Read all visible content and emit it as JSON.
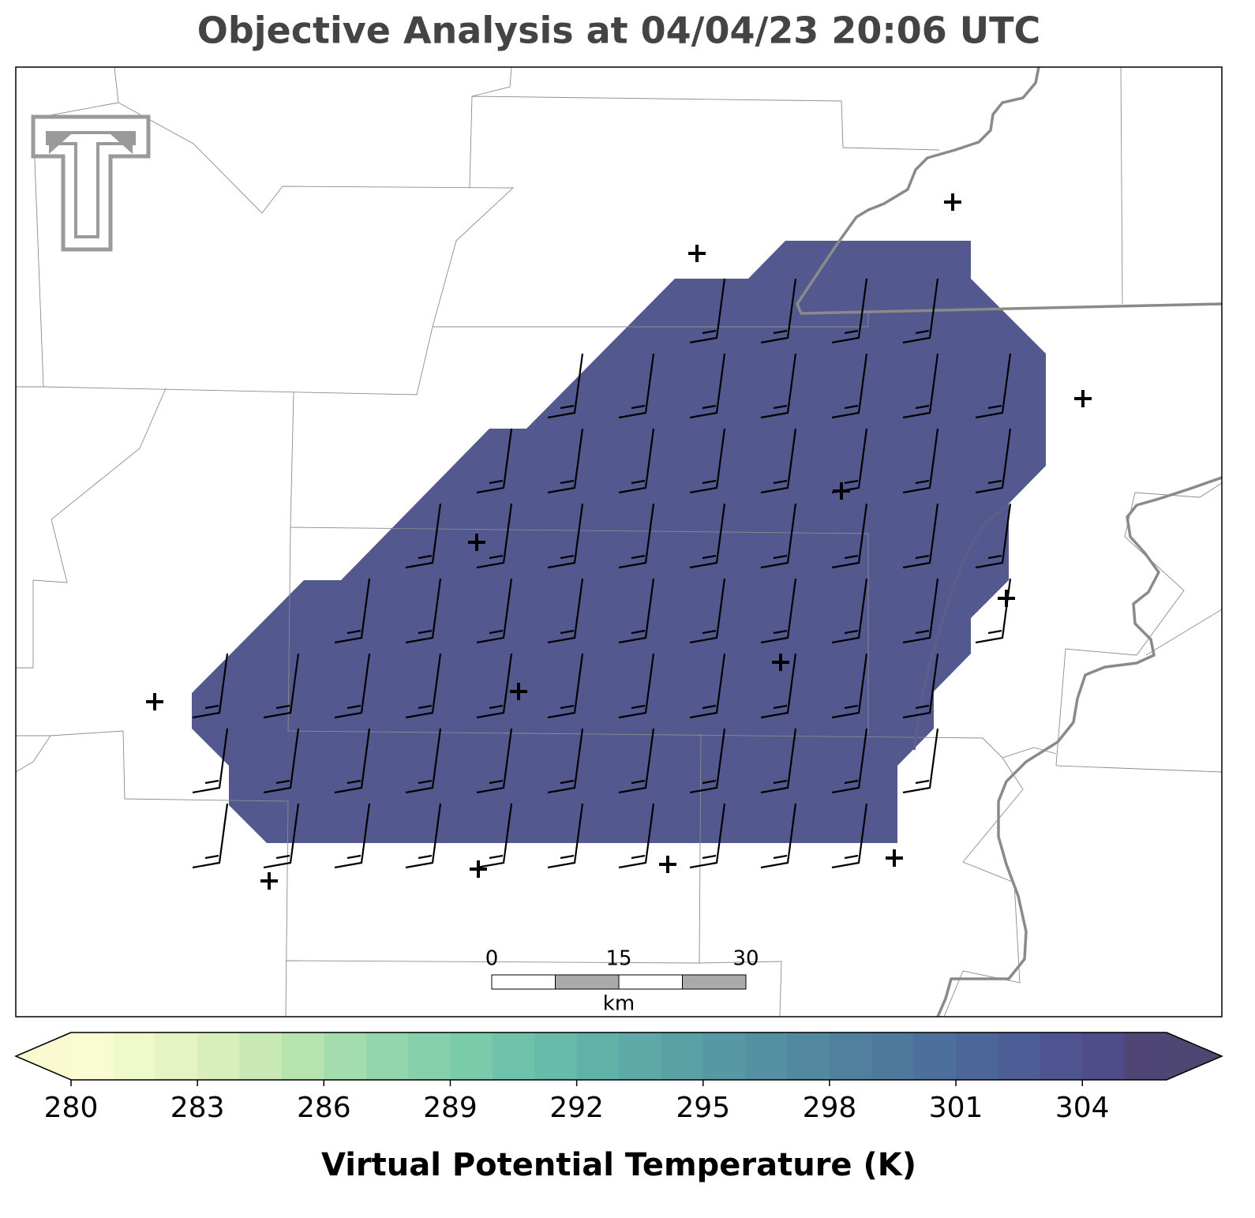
{
  "title": "Objective Analysis at 04/04/23 20:06 UTC",
  "scale_bar": {
    "ticks": [
      0,
      15,
      30
    ],
    "unit": "km"
  },
  "colorbar": {
    "label": "Virtual Potential Temperature (K)",
    "lim": [
      280,
      306
    ],
    "ticks": [
      280,
      283,
      286,
      289,
      292,
      295,
      298,
      301,
      304
    ],
    "colors": [
      "#f9fbd0",
      "#effac9",
      "#e4f4c2",
      "#d8efbb",
      "#c9e9b4",
      "#b6e3ae",
      "#a4ddad",
      "#94d6ac",
      "#86d1ab",
      "#79cbaa",
      "#6fc3aa",
      "#67bbaa",
      "#62b1a9",
      "#5ea9a7",
      "#5aa1a6",
      "#5898a4",
      "#5590a2",
      "#5288a0",
      "#50809e",
      "#4e789c",
      "#4d6f9b",
      "#4c6699",
      "#4d5d96",
      "#4e5490",
      "#504b89",
      "#4f4676"
    ],
    "under_color": "#fafad0",
    "over_color": "#4e4673"
  }
}
